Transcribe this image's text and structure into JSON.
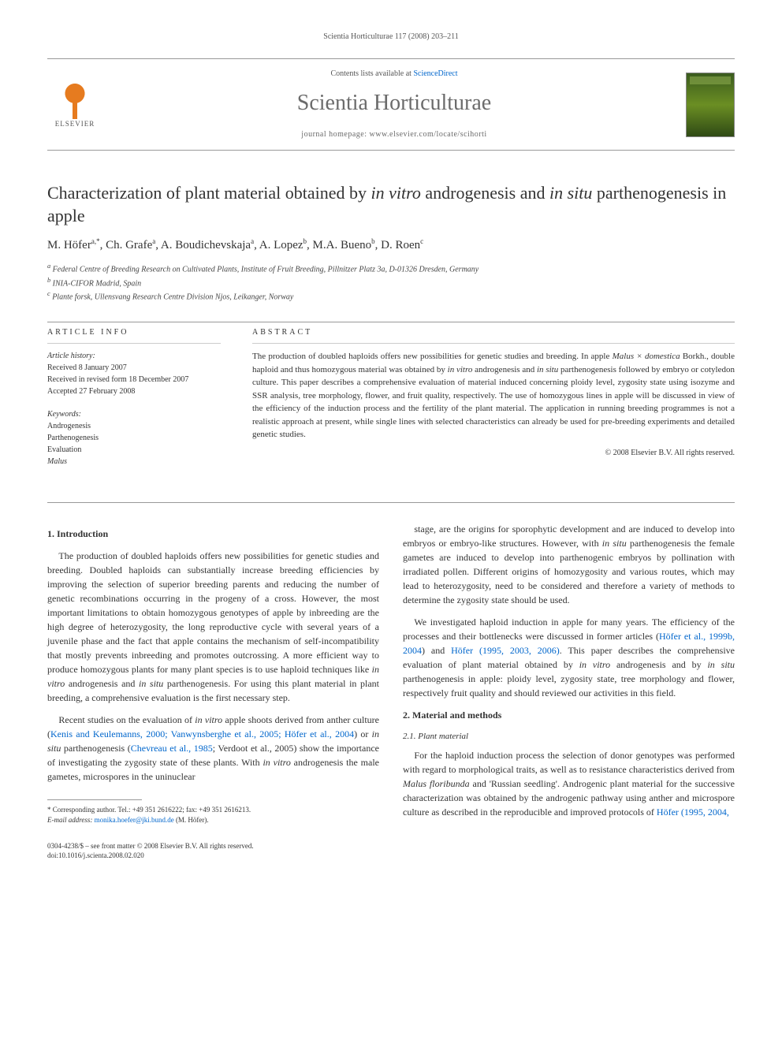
{
  "header": {
    "running_head": "Scientia Horticulturae 117 (2008) 203–211",
    "contents_prefix": "Contents lists available at ",
    "contents_link": "ScienceDirect",
    "journal_name": "Scientia Horticulturae",
    "homepage_line": "journal homepage: www.elsevier.com/locate/scihorti",
    "elsevier_label": "ELSEVIER"
  },
  "article": {
    "title_pre": "Characterization of plant material obtained by ",
    "title_ital1": "in vitro",
    "title_mid": " androgenesis and ",
    "title_ital2": "in situ",
    "title_post": " parthenogenesis in apple",
    "authors_html": "M. Höfer<sup>a,*</sup>, Ch. Grafe<sup>a</sup>, A. Boudichevskaja<sup>a</sup>, A. Lopez<sup>b</sup>, M.A. Bueno<sup>b</sup>, D. Roen<sup>c</sup>",
    "aff_a": "Federal Centre of Breeding Research on Cultivated Plants, Institute of Fruit Breeding, Pillnitzer Platz 3a, D-01326 Dresden, Germany",
    "aff_b": "INIA-CIFOR Madrid, Spain",
    "aff_c": "Plante forsk, Ullensvang Research Centre Division Njos, Leikanger, Norway"
  },
  "info": {
    "heading1": "ARTICLE INFO",
    "history_label": "Article history:",
    "received": "Received 8 January 2007",
    "revised": "Received in revised form 18 December 2007",
    "accepted": "Accepted 27 February 2008",
    "keywords_label": "Keywords:",
    "kw1": "Androgenesis",
    "kw2": "Parthenogenesis",
    "kw3": "Evaluation",
    "kw4": "Malus"
  },
  "abstract": {
    "heading": "ABSTRACT",
    "text_parts": {
      "p1": "The production of doubled haploids offers new possibilities for genetic studies and breeding. In apple ",
      "i1": "Malus × domestica",
      "p2": " Borkh., double haploid and thus homozygous material was obtained by ",
      "i2": "in vitro",
      "p3": " androgenesis and ",
      "i3": "in situ",
      "p4": " parthenogenesis followed by embryo or cotyledon culture. This paper describes a comprehensive evaluation of material induced concerning ploidy level, zygosity state using isozyme and SSR analysis, tree morphology, flower, and fruit quality, respectively. The use of homozygous lines in apple will be discussed in view of the efficiency of the induction process and the fertility of the plant material. The application in running breeding programmes is not a realistic approach at present, while single lines with selected characteristics can already be used for pre-breeding experiments and detailed genetic studies."
    },
    "copyright": "© 2008 Elsevier B.V. All rights reserved."
  },
  "body": {
    "sec1": "1.  Introduction",
    "intro_p1": "The production of doubled haploids offers new possibilities for genetic studies and breeding. Doubled haploids can substantially increase breeding efficiencies by improving the selection of superior breeding parents and reducing the number of genetic recombinations occurring in the progeny of a cross. However, the most important limitations to obtain homozygous genotypes of apple by inbreeding are the high degree of heterozygosity, the long reproductive cycle with several years of a juvenile phase and the fact that apple contains the mechanism of self-incompatibility that mostly prevents inbreeding and promotes outcrossing. A more efficient way to produce homozygous plants for many plant species is to use haploid techniques like ",
    "intro_p1_i1": "in vitro",
    "intro_p1_m1": " androgenesis and ",
    "intro_p1_i2": "in situ",
    "intro_p1_m2": " parthenogenesis. For using this plant material in plant breeding, a comprehensive evaluation is the first necessary step.",
    "intro_p2_a": "Recent studies on the evaluation of ",
    "intro_p2_i1": "in vitro",
    "intro_p2_b": " apple shoots derived from anther culture (",
    "intro_p2_c1": "Kenis and Keulemanns, 2000; Vanwynsberghe et al., 2005; Höfer et al., 2004",
    "intro_p2_c": ") or ",
    "intro_p2_i2": "in situ",
    "intro_p2_d": " parthenogenesis (",
    "intro_p2_c2": "Chevreau et al., 1985",
    "intro_p2_e": "; Verdoot et al., 2005) show the importance of investigating the zygosity state of these plants. With ",
    "intro_p2_i3": "in vitro",
    "intro_p2_f": " androgenesis the male gametes, microspores in the uninuclear",
    "col2_p1_a": "stage, are the origins for sporophytic development and are induced to develop into embryos or embryo-like structures. However, with ",
    "col2_p1_i1": "in situ",
    "col2_p1_b": " parthenogenesis the female gametes are induced to develop into parthenogenic embryos by pollination with irradiated pollen. Different origins of homozygosity and various routes, which may lead to heterozygosity, need to be considered and therefore a variety of methods to determine the zygosity state should be used.",
    "col2_p2_a": "We investigated haploid induction in apple for many years. The efficiency of the processes and their bottlenecks were discussed in former articles (",
    "col2_p2_c1": "Höfer et al., 1999b, 2004",
    "col2_p2_b": ") and ",
    "col2_p2_c2": "Höfer (1995, 2003, 2006)",
    "col2_p2_c": ". This paper describes the comprehensive evaluation of plant material obtained by ",
    "col2_p2_i1": "in vitro",
    "col2_p2_d": " androgenesis and by ",
    "col2_p2_i2": "in situ",
    "col2_p2_e": " parthenogenesis in apple: ploidy level, zygosity state, tree morphology and flower, respectively fruit quality and should reviewed our activities in this field.",
    "sec2": "2.  Material and methods",
    "sec21": "2.1.  Plant material",
    "mm_p1_a": "For the haploid induction process the selection of donor genotypes was performed with regard to morphological traits, as well as to resistance characteristics derived from ",
    "mm_p1_i1": "Malus floribunda",
    "mm_p1_b": " and 'Russian seedling'. Androgenic plant material for the successive characterization was obtained by the androgenic pathway using anther and microspore culture as described in the reproducible and improved protocols of ",
    "mm_p1_c1": "Höfer (1995, 2004,"
  },
  "footnote": {
    "corr_label": "* Corresponding author. Tel.: +49 351 2616222; fax: +49 351 2616213.",
    "email_label": "E-mail address:",
    "email": "monika.hoefer@jki.bund.de",
    "email_owner": "(M. Höfer)."
  },
  "footer": {
    "issn_line": "0304-4238/$ – see front matter © 2008 Elsevier B.V. All rights reserved.",
    "doi_line": "doi:10.1016/j.scienta.2008.02.020"
  },
  "style": {
    "link_color": "#0066cc",
    "text_color": "#333333",
    "rule_color": "#999999",
    "journal_color": "#6b6b6b"
  }
}
